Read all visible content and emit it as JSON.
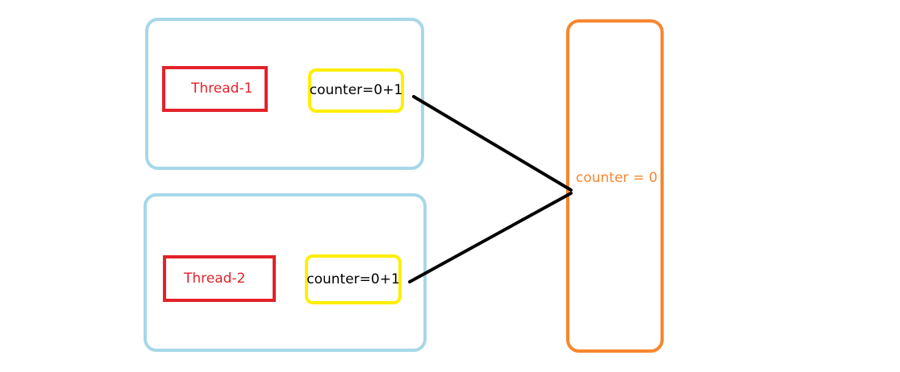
{
  "colors": {
    "thread_box_border": "#a6d8e8",
    "thread_label": "#e3222a",
    "local_var_border": "#ffee00",
    "shared_memory": "#f7862f",
    "connector": "#000000"
  },
  "threads": [
    {
      "label": "Thread-1",
      "local_var": "counter=0+1"
    },
    {
      "label": "Thread-2",
      "local_var": "counter=0+1"
    }
  ],
  "shared_memory": {
    "label": "counter = 0"
  }
}
